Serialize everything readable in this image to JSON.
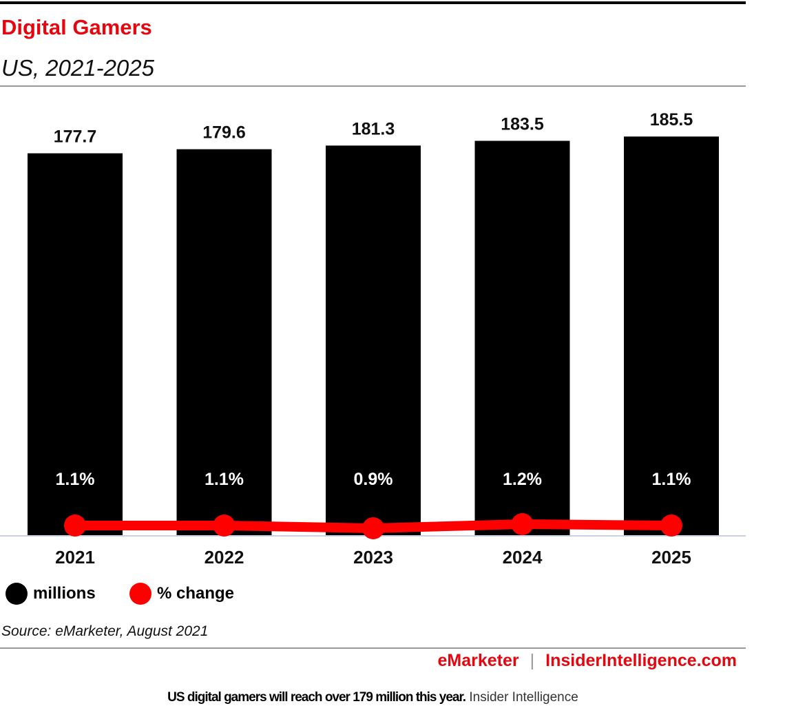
{
  "chart_data": {
    "type": "bar",
    "title": "Digital Gamers",
    "subtitle": "US, 2021-2025",
    "categories": [
      "2021",
      "2022",
      "2023",
      "2024",
      "2025"
    ],
    "series": [
      {
        "name": "millions",
        "type": "bar",
        "color": "#000000",
        "values": [
          177.7,
          179.6,
          181.3,
          183.5,
          185.5
        ],
        "labels": [
          "177.7",
          "179.6",
          "181.3",
          "183.5",
          "185.5"
        ]
      },
      {
        "name": "% change",
        "type": "line",
        "color": "#ff0000",
        "values": [
          1.1,
          1.1,
          0.9,
          1.2,
          1.1
        ],
        "labels": [
          "1.1%",
          "1.1%",
          "0.9%",
          "1.2%",
          "1.1%"
        ]
      }
    ],
    "legend_position": "bottom-left",
    "grid": false
  },
  "source": "Source: eMarketer, August 2021",
  "footer": {
    "brand1": "eMarketer",
    "separator": "|",
    "brand2": "InsiderIntelligence.com"
  },
  "caption": {
    "bold": "US digital gamers will reach over 179 million this year.",
    "normal": "Insider Intelligence"
  }
}
